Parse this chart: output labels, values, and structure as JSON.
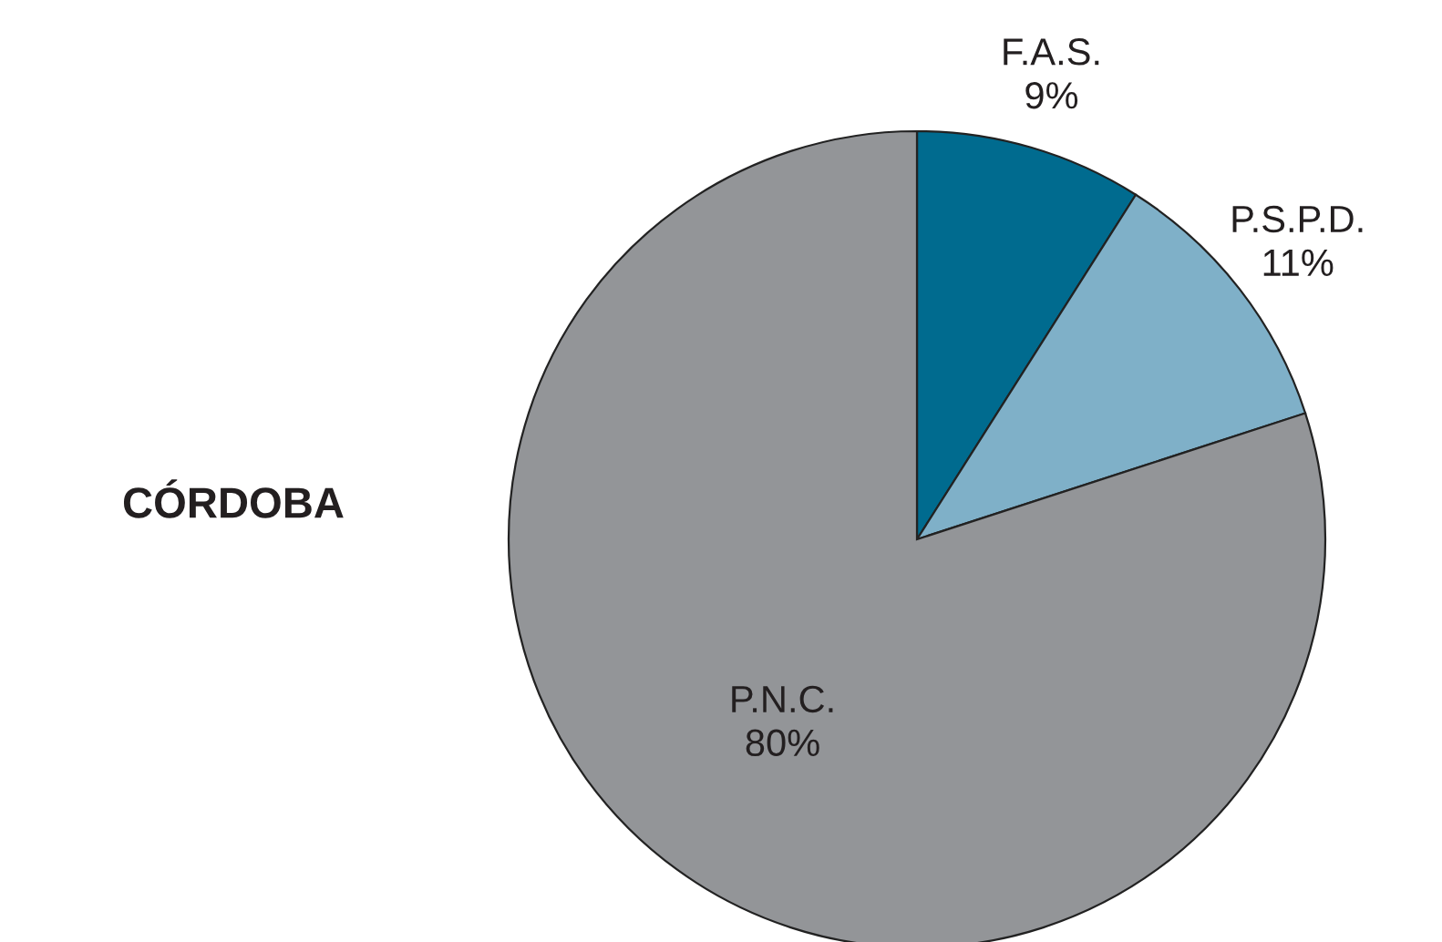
{
  "chart_data": {
    "type": "pie",
    "title": "CÓRDOBA",
    "categories": [
      "F.A.S.",
      "P.S.P.D.",
      "P.N.C."
    ],
    "values": [
      9,
      11,
      80
    ],
    "colors": [
      "#006b8f",
      "#7fb0c8",
      "#939598"
    ],
    "value_labels": [
      "9%",
      "11%",
      "80%"
    ]
  }
}
